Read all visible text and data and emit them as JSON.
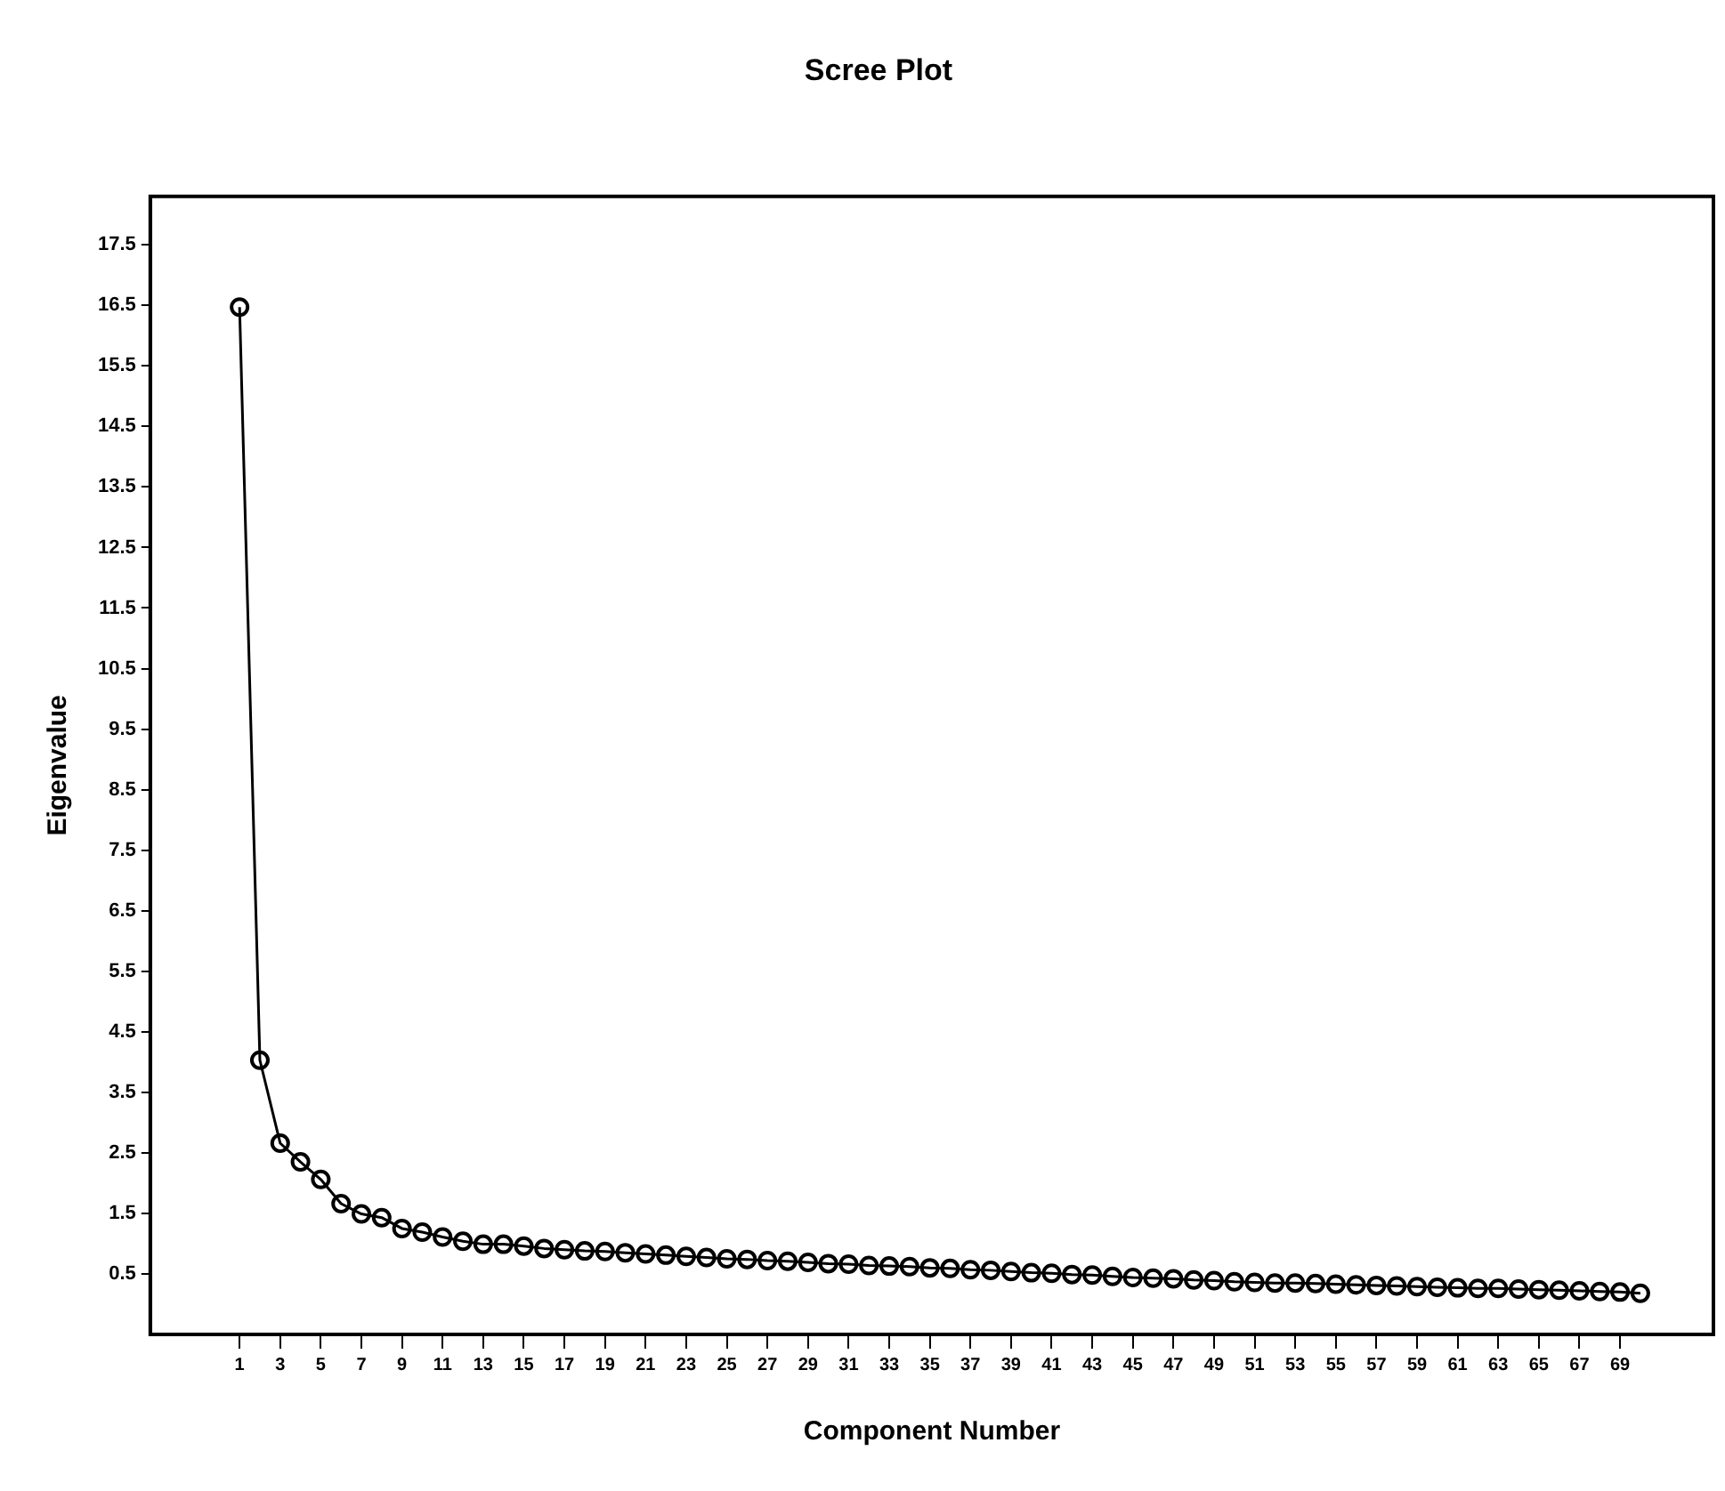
{
  "chart_data": {
    "type": "line",
    "title": "Scree Plot",
    "xlabel": "Component Number",
    "ylabel": "Eigenvalue",
    "x": [
      1,
      2,
      3,
      4,
      5,
      6,
      7,
      8,
      9,
      10,
      11,
      12,
      13,
      14,
      15,
      16,
      17,
      18,
      19,
      20,
      21,
      22,
      23,
      24,
      25,
      26,
      27,
      28,
      29,
      30,
      31,
      32,
      33,
      34,
      35,
      36,
      37,
      38,
      39,
      40,
      41,
      42,
      43,
      44,
      45,
      46,
      47,
      48,
      49,
      50,
      51,
      52,
      53,
      54,
      55,
      56,
      57,
      58,
      59,
      60,
      61,
      62,
      63,
      64,
      65,
      66,
      67,
      68,
      69,
      70
    ],
    "series": [
      {
        "color": "#000000",
        "values": [
          16.47,
          4.03,
          2.66,
          2.35,
          2.06,
          1.66,
          1.49,
          1.43,
          1.25,
          1.19,
          1.11,
          1.04,
          0.99,
          0.99,
          0.96,
          0.92,
          0.9,
          0.88,
          0.87,
          0.85,
          0.83,
          0.81,
          0.79,
          0.77,
          0.75,
          0.74,
          0.72,
          0.71,
          0.69,
          0.67,
          0.66,
          0.64,
          0.63,
          0.62,
          0.6,
          0.59,
          0.57,
          0.56,
          0.54,
          0.52,
          0.51,
          0.49,
          0.48,
          0.46,
          0.44,
          0.43,
          0.42,
          0.4,
          0.39,
          0.37,
          0.36,
          0.35,
          0.35,
          0.34,
          0.33,
          0.32,
          0.31,
          0.3,
          0.29,
          0.28,
          0.27,
          0.26,
          0.26,
          0.25,
          0.24,
          0.23,
          0.22,
          0.21,
          0.2,
          0.18
        ]
      }
    ],
    "xlim": [
      -3.4,
      73.6
    ],
    "xticks": [
      1,
      3,
      5,
      7,
      9,
      11,
      13,
      15,
      17,
      19,
      21,
      23,
      25,
      27,
      29,
      31,
      33,
      35,
      37,
      39,
      41,
      43,
      45,
      47,
      49,
      51,
      53,
      55,
      57,
      59,
      61,
      63,
      65,
      67,
      69
    ],
    "ylim": [
      -0.5,
      18.3
    ],
    "yticks": [
      0.5,
      1.5,
      2.5,
      3.5,
      4.5,
      5.5,
      6.5,
      7.5,
      8.5,
      9.5,
      10.5,
      11.5,
      12.5,
      13.5,
      14.5,
      15.5,
      16.5,
      17.5
    ],
    "grid": false,
    "legend": false,
    "marker": "circle",
    "line_style": "solid"
  }
}
